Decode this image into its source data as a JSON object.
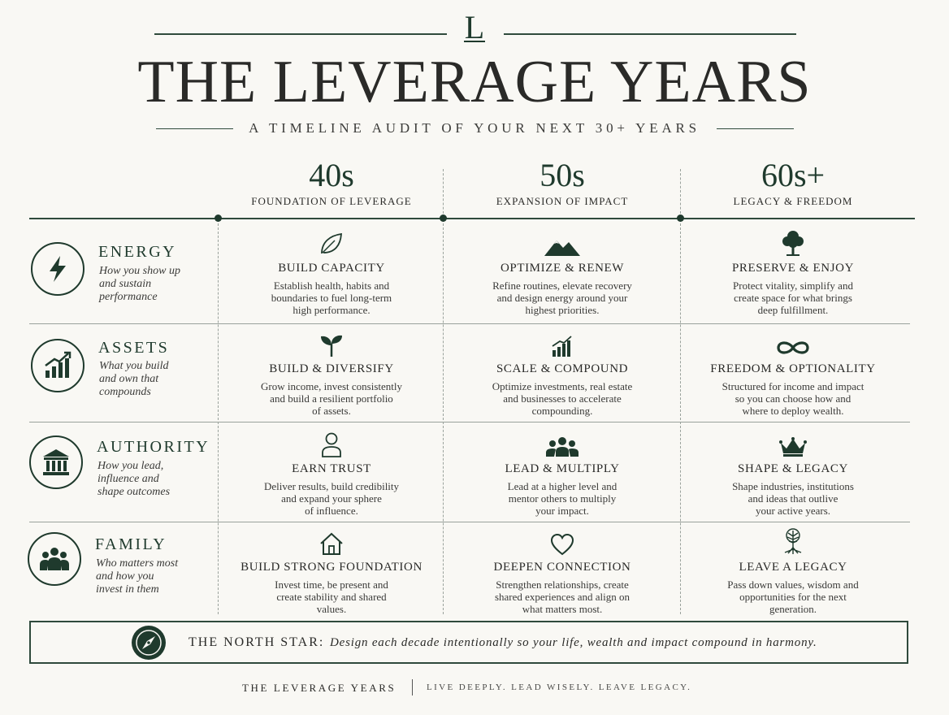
{
  "header": {
    "logo": "L",
    "title": "THE LEVERAGE YEARS",
    "subtitle": "A TIMELINE AUDIT OF YOUR NEXT 30+ YEARS"
  },
  "decades": [
    {
      "label": "40s",
      "subtitle": "FOUNDATION OF LEVERAGE"
    },
    {
      "label": "50s",
      "subtitle": "EXPANSION OF IMPACT"
    },
    {
      "label": "60s+",
      "subtitle": "LEGACY & FREEDOM"
    }
  ],
  "rows": [
    {
      "name": "ENERGY",
      "icon": "lightning-icon",
      "desc": [
        "How you show up",
        "and sustain",
        "performance"
      ],
      "cells": [
        {
          "icon": "leaf-icon",
          "title": "BUILD CAPACITY",
          "lines": [
            "Establish health, habits and",
            "boundaries to fuel long-term",
            "high performance."
          ]
        },
        {
          "icon": "mountain-icon",
          "title": "OPTIMIZE & RENEW",
          "lines": [
            "Refine routines, elevate recovery",
            "and design energy around your",
            "highest priorities."
          ]
        },
        {
          "icon": "tree-icon",
          "title": "PRESERVE & ENJOY",
          "lines": [
            "Protect vitality, simplify and",
            "create space for what brings",
            "deep fulfillment."
          ]
        }
      ]
    },
    {
      "name": "ASSETS",
      "icon": "growth-chart-icon",
      "desc": [
        "What you build",
        "and own that",
        "compounds"
      ],
      "cells": [
        {
          "icon": "sprout-icon",
          "title": "BUILD & DIVERSIFY",
          "lines": [
            "Grow income, invest consistently",
            "and build a resilient portfolio",
            "of assets."
          ]
        },
        {
          "icon": "bar-chart-icon",
          "title": "SCALE & COMPOUND",
          "lines": [
            "Optimize investments, real estate",
            "and businesses to accelerate",
            "compounding."
          ]
        },
        {
          "icon": "infinity-icon",
          "title": "FREEDOM & OPTIONALITY",
          "lines": [
            "Structured for income and impact",
            "so you can choose how and",
            "where to deploy wealth."
          ]
        }
      ]
    },
    {
      "name": "AUTHORITY",
      "icon": "institution-icon",
      "desc": [
        "How you lead,",
        "influence and",
        "shape outcomes"
      ],
      "cells": [
        {
          "icon": "person-icon",
          "title": "EARN TRUST",
          "lines": [
            "Deliver results, build credibility",
            "and expand your sphere",
            "of influence."
          ]
        },
        {
          "icon": "group-icon",
          "title": "LEAD & MULTIPLY",
          "lines": [
            "Lead at a higher level and",
            "mentor others to multiply",
            "your impact."
          ]
        },
        {
          "icon": "crown-icon",
          "title": "SHAPE & LEGACY",
          "lines": [
            "Shape industries, institutions",
            "and ideas that outlive",
            "your active years."
          ]
        }
      ]
    },
    {
      "name": "FAMILY",
      "icon": "family-icon",
      "desc": [
        "Who matters most",
        "and how you",
        "invest in them"
      ],
      "cells": [
        {
          "icon": "house-icon",
          "title": "BUILD STRONG FOUNDATION",
          "lines": [
            "Invest time, be present and",
            "create stability and shared",
            "values."
          ]
        },
        {
          "icon": "heart-icon",
          "title": "DEEPEN CONNECTION",
          "lines": [
            "Strengthen relationships, create",
            "shared experiences and align on",
            "what matters most."
          ]
        },
        {
          "icon": "rooted-tree-icon",
          "title": "LEAVE A LEGACY",
          "lines": [
            "Pass down values, wisdom and",
            "opportunities for the next",
            "generation."
          ]
        }
      ]
    }
  ],
  "north_star": {
    "icon": "compass-icon",
    "label": "THE NORTH STAR:",
    "text": "Design each decade intentionally so your life, wealth and impact compound in harmony."
  },
  "footer": {
    "brand": "THE LEVERAGE YEARS",
    "tagline": "LIVE DEEPLY. LEAD WISELY. LEAVE LEGACY."
  },
  "colors": {
    "accent": "#1f3a2d",
    "background": "#f9f8f4",
    "text": "#2c2c2a"
  }
}
